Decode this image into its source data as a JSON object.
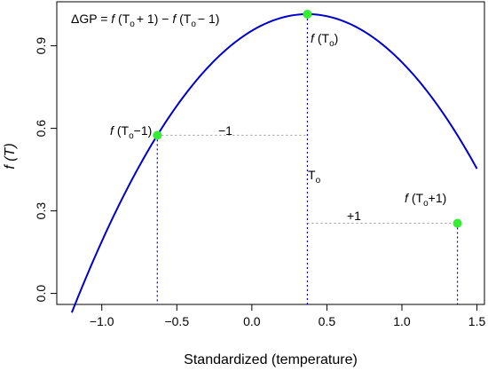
{
  "chart_data": {
    "type": "line",
    "xlabel": "Standardized (temperature)",
    "ylabel": "f (T)",
    "xlim": [
      -1.3,
      1.55
    ],
    "ylim": [
      -0.04,
      1.06
    ],
    "xticks": [
      -1.0,
      -0.5,
      0.0,
      0.5,
      1.0,
      1.5
    ],
    "xtick_labels": [
      "−1.0",
      "−0.5",
      "0.0",
      "0.5",
      "1.0",
      "1.5"
    ],
    "yticks": [
      0.0,
      0.3,
      0.6,
      0.9
    ],
    "ytick_labels": [
      "0.0",
      "0.3",
      "0.6",
      "0.9"
    ],
    "grid": false,
    "curve": {
      "color": "#0000CC",
      "x_min": -1.2,
      "x_max": 1.5,
      "peak_x": 0.37,
      "peak_y": 1.015,
      "coefficient": 0.44
    },
    "points": [
      {
        "x": -0.63,
        "y": 0.575,
        "label_prefix": "f",
        "label_main": "(T",
        "label_sub": "o",
        "label_suffix": "−1)"
      },
      {
        "x": 0.37,
        "y": 1.015,
        "label_prefix": "f",
        "label_main": "(T",
        "label_sub": "o",
        "label_suffix": ")"
      },
      {
        "x": 1.37,
        "y": 0.255,
        "label_prefix": "f",
        "label_main": "(T",
        "label_sub": "o",
        "label_suffix": "+1)"
      }
    ],
    "point_color": "#33EE33",
    "annotations": {
      "formula": {
        "prefix": "ΔGP = ",
        "f1": "f",
        "p1": " (T",
        "s1": "o",
        "t1": "+ 1) − ",
        "f2": "f",
        "p2": " (T",
        "s2": "o",
        "t2": "− 1)"
      },
      "minus_one": "−1",
      "plus_one": "+1",
      "to_main": "T",
      "to_sub": "o"
    }
  }
}
